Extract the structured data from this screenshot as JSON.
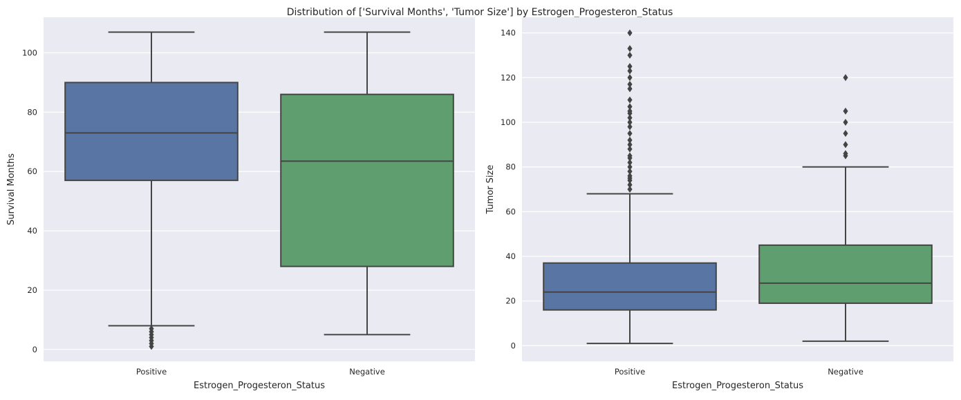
{
  "figure": {
    "title": "Distribution of ['Survival Months', 'Tumor Size'] by Estrogen_Progesteron_Status"
  },
  "colors": {
    "background": "#eaeaf2",
    "grid": "#ffffff",
    "line": "#444444",
    "positive_fill": "#5875a4",
    "negative_fill": "#5f9e6e"
  },
  "chart_data": [
    {
      "type": "box",
      "xlabel": "Estrogen_Progesteron_Status",
      "ylabel": "Survival Months",
      "categories": [
        "Positive",
        "Negative"
      ],
      "ylim": [
        -4,
        112
      ],
      "yticks": [
        0,
        20,
        40,
        60,
        80,
        100
      ],
      "grid": true,
      "boxes": [
        {
          "category": "Positive",
          "whisker_low": 8,
          "q1": 57,
          "median": 73,
          "q3": 90,
          "whisker_high": 107,
          "outliers": [
            1,
            2,
            3,
            4,
            5,
            6,
            7
          ]
        },
        {
          "category": "Negative",
          "whisker_low": 5,
          "q1": 28,
          "median": 63.5,
          "q3": 86,
          "whisker_high": 107,
          "outliers": []
        }
      ]
    },
    {
      "type": "box",
      "xlabel": "Estrogen_Progesteron_Status",
      "ylabel": "Tumor Size",
      "categories": [
        "Positive",
        "Negative"
      ],
      "ylim": [
        -7,
        147
      ],
      "yticks": [
        0,
        20,
        40,
        60,
        80,
        100,
        120,
        140
      ],
      "grid": true,
      "boxes": [
        {
          "category": "Positive",
          "whisker_low": 1,
          "q1": 16,
          "median": 24,
          "q3": 37,
          "whisker_high": 68,
          "outliers": [
            70,
            72,
            74,
            75,
            76,
            78,
            80,
            82,
            84,
            85,
            88,
            90,
            92,
            95,
            98,
            100,
            102,
            104,
            105,
            107,
            110,
            115,
            117,
            120,
            123,
            125,
            130,
            133,
            140
          ]
        },
        {
          "category": "Negative",
          "whisker_low": 2,
          "q1": 19,
          "median": 28,
          "q3": 45,
          "whisker_high": 80,
          "outliers": [
            85,
            86,
            90,
            95,
            100,
            105,
            120
          ]
        }
      ]
    }
  ]
}
